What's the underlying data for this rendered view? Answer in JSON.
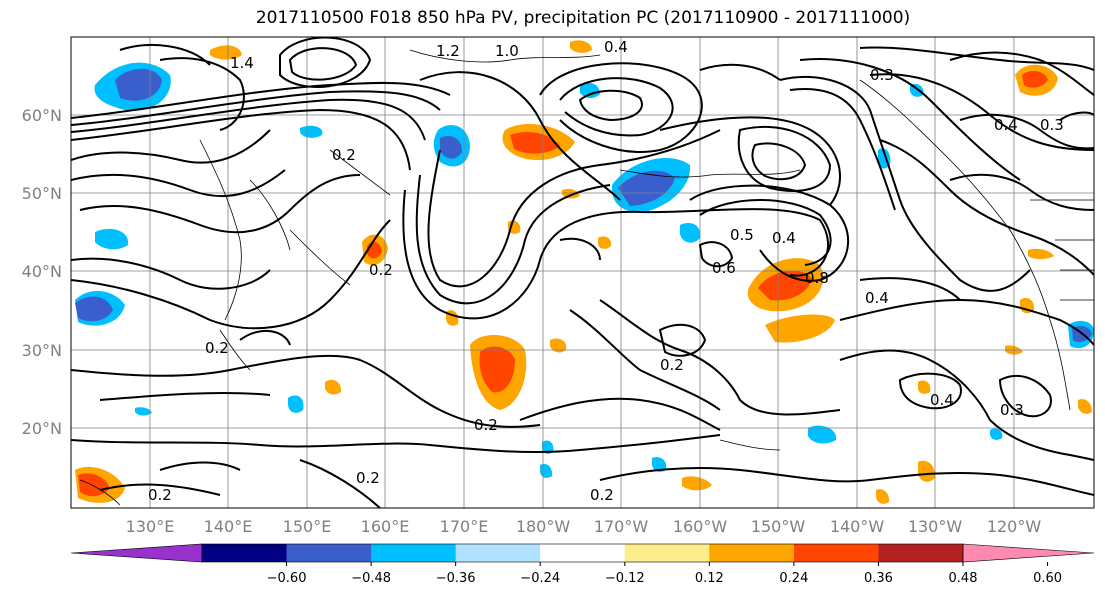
{
  "title": "2017110500 F018 850 hPa PV, precipitation PC (2017110900 - 2017111000)",
  "map": {
    "lon_ticks": [
      "130°E",
      "140°E",
      "150°E",
      "160°E",
      "170°E",
      "180°W",
      "170°W",
      "160°W",
      "150°W",
      "140°W",
      "130°W",
      "120°W"
    ],
    "lat_ticks": [
      "60°N",
      "50°N",
      "40°N",
      "30°N",
      "20°N"
    ],
    "contour_labels": [
      "1.2",
      "1.0",
      "0.4",
      "0.3",
      "0.2",
      "0.2",
      "0.2",
      "0.2",
      "0.2",
      "0.2",
      "0.2",
      "0.4",
      "0.4",
      "0.3",
      "0.3",
      "0.8",
      "0.6",
      "0.5",
      "0.4",
      "1.4",
      "0.4",
      "0.2"
    ],
    "colorbar": {
      "colors": [
        "#9932cc",
        "#000080",
        "#3a5fcd",
        "#00bfff",
        "#b0e2ff",
        "#ffffff",
        "#ffec8b",
        "#ffa500",
        "#ff4500",
        "#b22222",
        "#ff8ab0"
      ],
      "ticks": [
        "−0.60",
        "−0.48",
        "−0.36",
        "−0.24",
        "−0.12",
        "0.12",
        "0.24",
        "0.36",
        "0.48",
        "0.60"
      ]
    }
  }
}
